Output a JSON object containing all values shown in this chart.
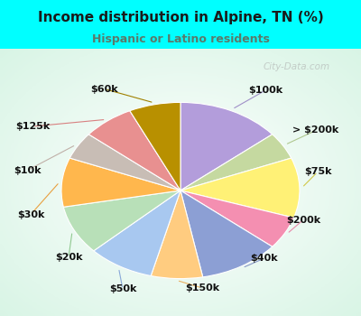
{
  "title": "Income distribution in Alpine, TN (%)",
  "subtitle": "Hispanic or Latino residents",
  "title_color": "#1a1a1a",
  "subtitle_color": "#5a7a6a",
  "background_color": "#00ffff",
  "watermark": "City-Data.com",
  "labels": [
    "$100k",
    "> $200k",
    "$75k",
    "$200k",
    "$40k",
    "$150k",
    "$50k",
    "$20k",
    "$30k",
    "$10k",
    "$125k",
    "$60k"
  ],
  "values": [
    14,
    5,
    11,
    6,
    11,
    7,
    9,
    9,
    9,
    5,
    7,
    7
  ],
  "colors": [
    "#b39ddb",
    "#c5d9a0",
    "#fff176",
    "#f48fb1",
    "#8c9fd4",
    "#ffcc80",
    "#a8c8f0",
    "#b8e0b8",
    "#ffb74d",
    "#c8bdb5",
    "#e89090",
    "#b89000"
  ],
  "startangle": 90,
  "label_fontsize": 8,
  "line_colors": [
    "#a090c8",
    "#b0c890",
    "#d0c848",
    "#e888a8",
    "#8898c8",
    "#e8b060",
    "#88a8d8",
    "#90c890",
    "#e8a040",
    "#c0b0a8",
    "#d88080",
    "#a08000"
  ]
}
